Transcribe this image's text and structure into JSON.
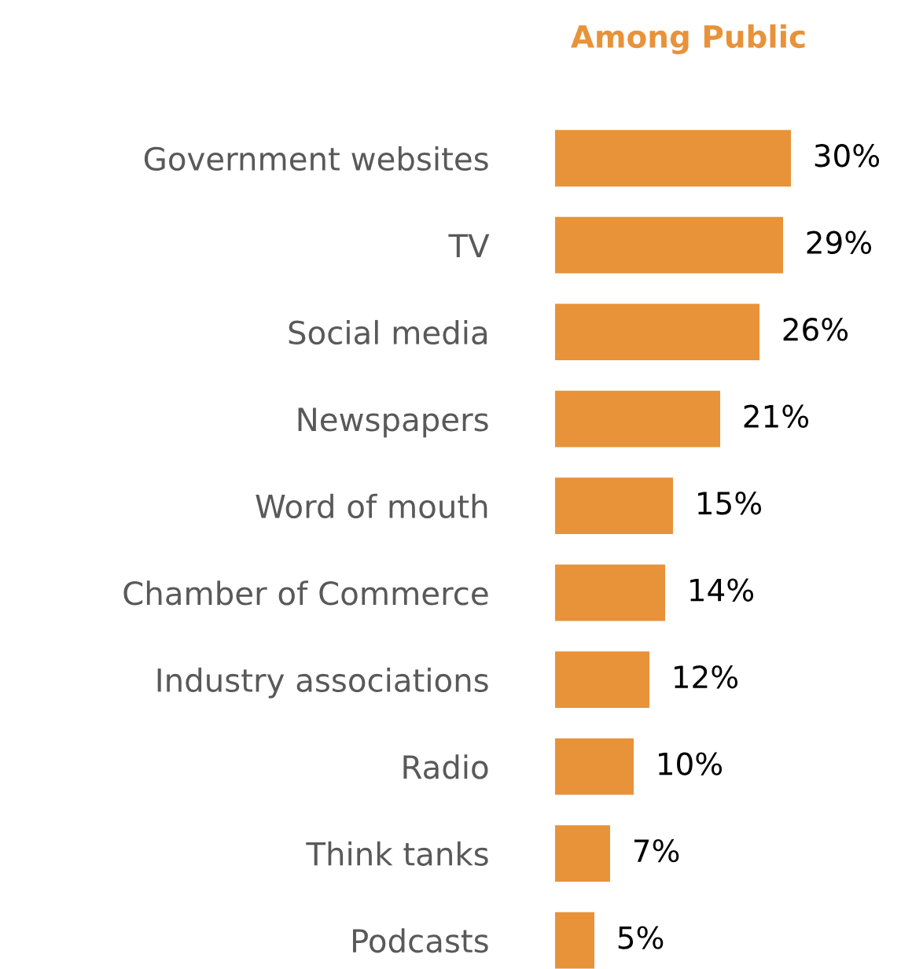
{
  "chart_data": {
    "type": "bar",
    "orientation": "horizontal",
    "title": "Among Public",
    "categories": [
      "Government websites",
      "TV",
      "Social media",
      "Newspapers",
      "Word of mouth",
      "Chamber of Commerce",
      "Industry associations",
      "Radio",
      "Think tanks",
      "Podcasts"
    ],
    "values": [
      30,
      29,
      26,
      21,
      15,
      14,
      12,
      10,
      7,
      5
    ],
    "value_labels": [
      "30%",
      "29%",
      "26%",
      "21%",
      "15%",
      "14%",
      "12%",
      "10%",
      "7%",
      "5%"
    ],
    "color": "#e8923a"
  }
}
